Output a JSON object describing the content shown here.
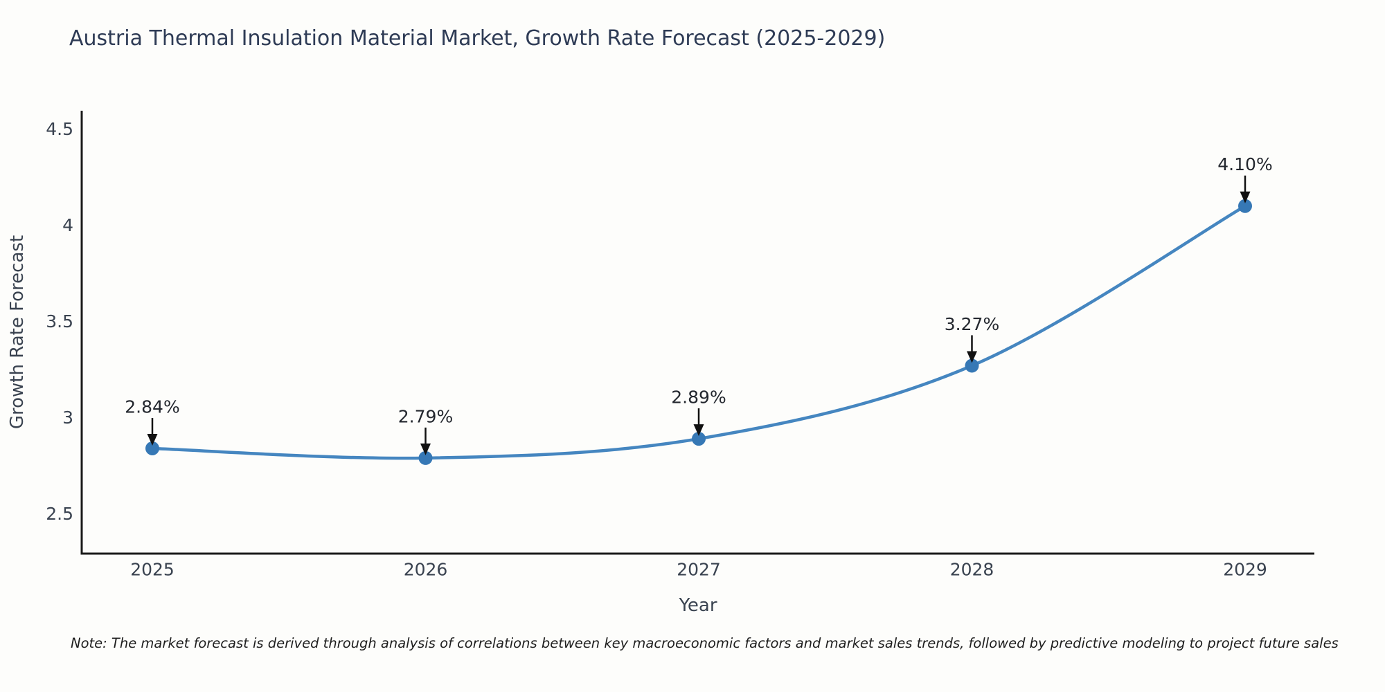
{
  "chart_data": {
    "type": "line",
    "title": "Austria Thermal Insulation Material Market, Growth Rate Forecast (2025-2029)",
    "xlabel": "Year",
    "ylabel": "Growth Rate Forecast",
    "categories": [
      "2025",
      "2026",
      "2027",
      "2028",
      "2029"
    ],
    "series": [
      {
        "name": "Growth Rate Forecast",
        "values": [
          2.84,
          2.79,
          2.89,
          3.27,
          4.1
        ],
        "point_labels": [
          "2.84%",
          "2.79%",
          "2.89%",
          "3.27%",
          "4.10%"
        ]
      }
    ],
    "yticks": [
      2.5,
      3,
      3.5,
      4,
      4.5
    ],
    "ylim": [
      2.29,
      4.6
    ],
    "grid": false,
    "legend_position": "none",
    "annotations_style": "label-with-down-arrow",
    "colors": {
      "line": "#4586c0",
      "marker": "#3678b5",
      "arrow": "#111111",
      "axis": "#1a1a1a",
      "title": "#2e3b55",
      "tick": "#3a4350",
      "annotation": "#23272e"
    }
  },
  "note": "Note: The market forecast is derived through analysis of correlations between key macroeconomic factors and market sales trends, followed by predictive modeling to project future sales"
}
